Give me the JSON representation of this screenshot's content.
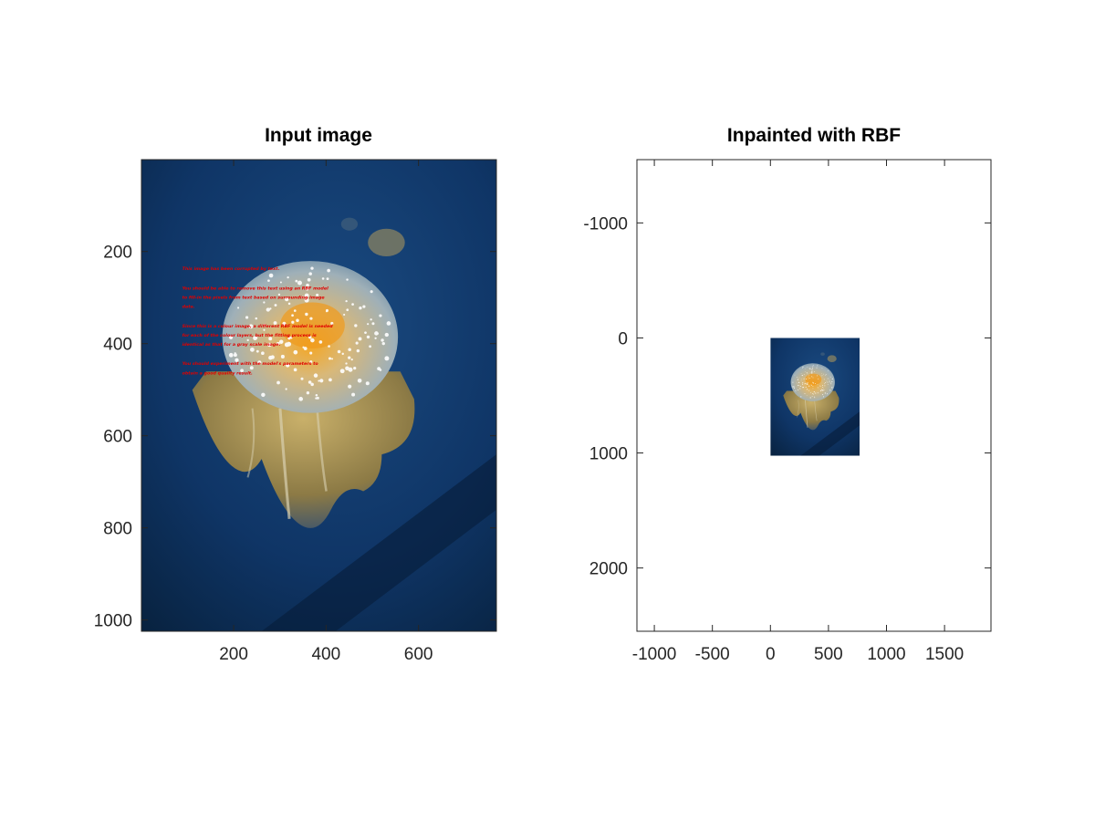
{
  "chart_data": [
    {
      "type": "image",
      "title": "Input image",
      "xlim": [
        0.5,
        768.5
      ],
      "ylim": [
        0.5,
        1024.5
      ],
      "y_reversed": true,
      "x_ticks": [
        200,
        400,
        600
      ],
      "y_ticks": [
        200,
        400,
        600,
        800,
        1000
      ],
      "image_subject": "jellyfish-with-overlaid-text",
      "overlay_text": [
        "This image has been corrupted by text.",
        "",
        "You should be able to remove this text using an RBF model",
        "to fill-in the pixels from text based on surrounding image",
        "data.",
        "",
        "Since this is a colour image, a different RBF model is needed",
        "for each of the colour layers, but the fitting process is",
        "identical as that for a gray scale image.",
        "",
        "You should experiment with the model's parameters to",
        "obtain a good quality result."
      ]
    },
    {
      "type": "image",
      "title": "Inpainted with RBF",
      "xlim": [
        -1150,
        1900
      ],
      "ylim": [
        -1550,
        2550
      ],
      "y_reversed": true,
      "x_ticks": [
        -1000,
        -500,
        0,
        500,
        1000,
        1500
      ],
      "y_ticks": [
        -1000,
        0,
        1000,
        2000
      ],
      "image_extent": {
        "x": [
          0,
          768
        ],
        "y": [
          0,
          1024
        ]
      },
      "image_subject": "jellyfish-inpainted"
    }
  ],
  "colors": {
    "water_dark": "#0b2a52",
    "water_mid": "#123a6e",
    "text_red": "#e00000",
    "bell": "#d8c48a",
    "bell_core": "#f0a020",
    "tentacle": "#b89a4a"
  }
}
